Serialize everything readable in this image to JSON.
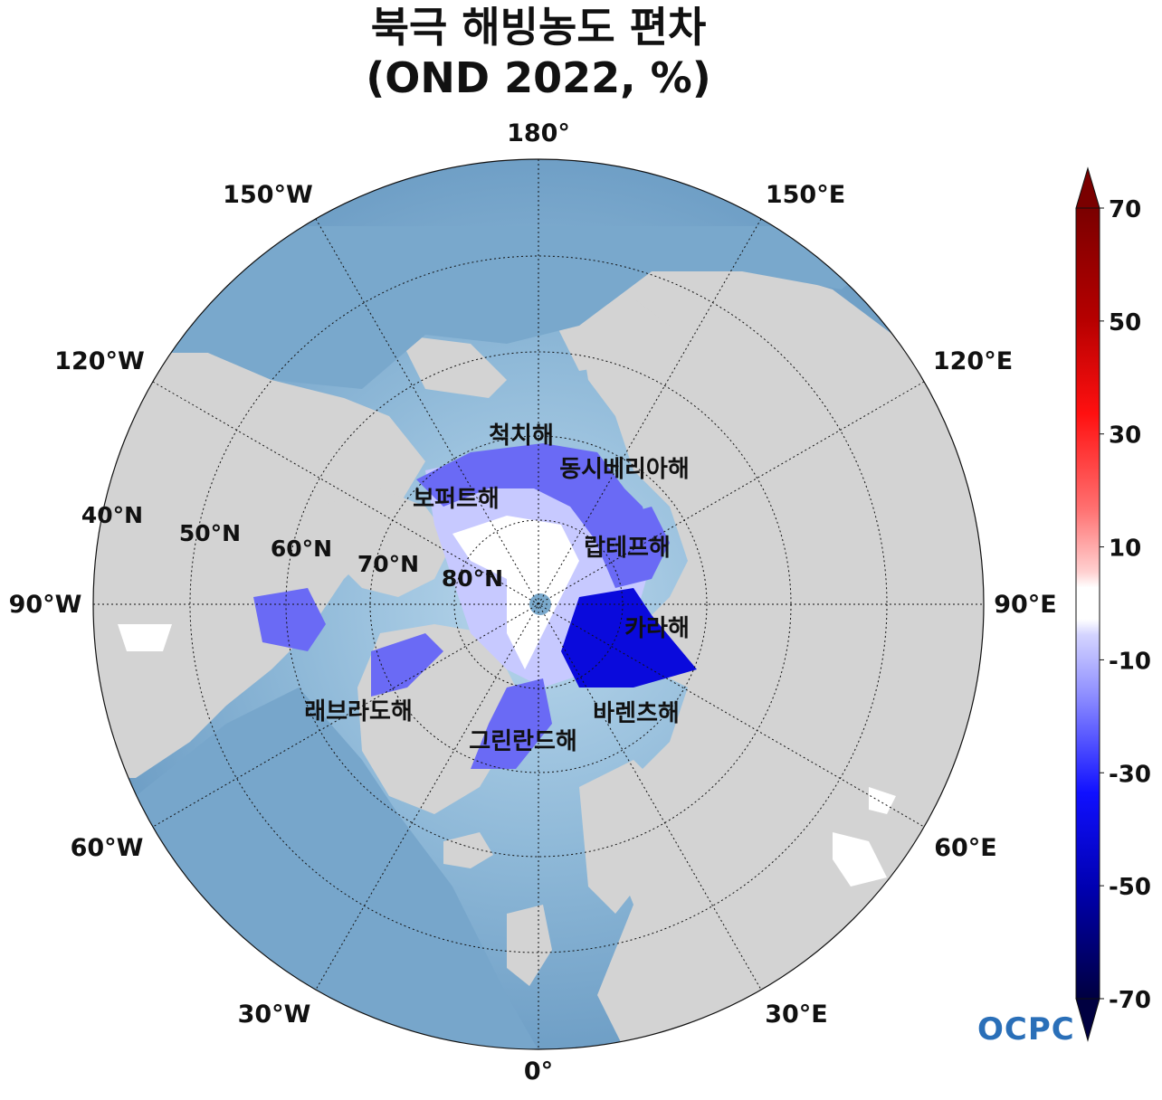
{
  "title": "북극 해빙농도 편차",
  "subtitle": "(OND 2022, %)",
  "longitude_labels": [
    {
      "id": "lon-180",
      "text": "180°"
    },
    {
      "id": "lon-150w",
      "text": "150°W"
    },
    {
      "id": "lon-150e",
      "text": "150°E"
    },
    {
      "id": "lon-120w",
      "text": "120°W"
    },
    {
      "id": "lon-120e",
      "text": "120°E"
    },
    {
      "id": "lon-90w",
      "text": "90°W"
    },
    {
      "id": "lon-90e",
      "text": "90°E"
    },
    {
      "id": "lon-60w",
      "text": "60°W"
    },
    {
      "id": "lon-60e",
      "text": "60°E"
    },
    {
      "id": "lon-30w",
      "text": "30°W"
    },
    {
      "id": "lon-30e",
      "text": "30°E"
    },
    {
      "id": "lon-0",
      "text": "0°"
    }
  ],
  "latitude_labels": [
    {
      "id": "lat-40",
      "text": "40°N"
    },
    {
      "id": "lat-50",
      "text": "50°N"
    },
    {
      "id": "lat-60",
      "text": "60°N"
    },
    {
      "id": "lat-70",
      "text": "70°N"
    },
    {
      "id": "lat-80",
      "text": "80°N"
    }
  ],
  "sea_labels": [
    {
      "id": "chukchi",
      "text": "척치해"
    },
    {
      "id": "east-siberian",
      "text": "동시베리아해"
    },
    {
      "id": "beaufort",
      "text": "보퍼트해"
    },
    {
      "id": "laptev",
      "text": "랍테프해"
    },
    {
      "id": "kara",
      "text": "카라해"
    },
    {
      "id": "barents",
      "text": "바렌츠해"
    },
    {
      "id": "labrador",
      "text": "래브라도해"
    },
    {
      "id": "greenland",
      "text": "그린란드해"
    }
  ],
  "colorbar": {
    "ticks": [
      "70",
      "50",
      "30",
      "10",
      "-10",
      "-30",
      "-50",
      "-70"
    ],
    "tick_values": [
      70,
      50,
      30,
      10,
      -10,
      -30,
      -50,
      -70
    ],
    "range": [
      -75,
      75
    ]
  },
  "logo_text": "OCPC",
  "colors": {
    "ocean": "#7aa9cc",
    "land": "#d3d3d3",
    "ice_anomaly_neg": "#5b5bf0",
    "ice_anomaly_strong_neg": "#0a0adc",
    "ice_weak": "#c7c9ff"
  }
}
